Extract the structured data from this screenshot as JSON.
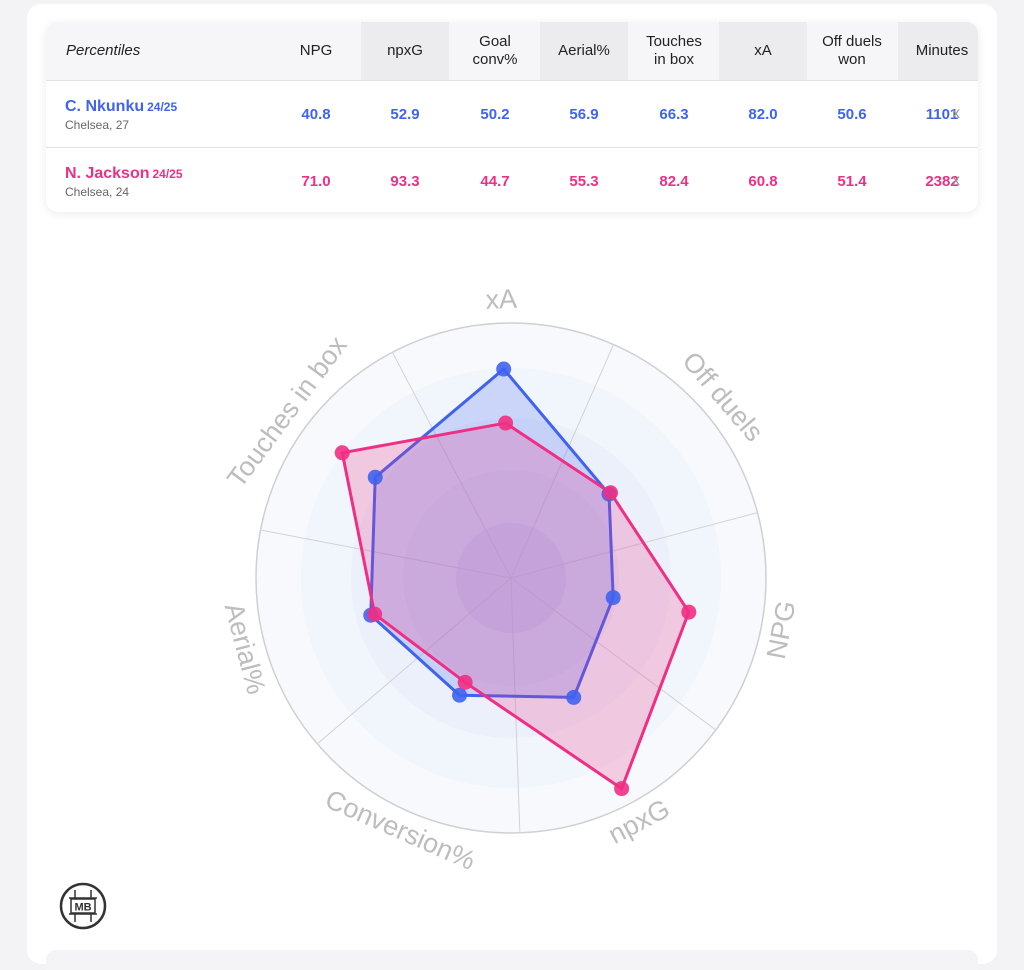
{
  "table": {
    "title": "Percentiles",
    "headers": [
      {
        "lines": [
          "NPG"
        ]
      },
      {
        "lines": [
          "npxG"
        ]
      },
      {
        "lines": [
          "Goal",
          "conv%"
        ]
      },
      {
        "lines": [
          "Aerial%"
        ]
      },
      {
        "lines": [
          "Touches",
          "in box"
        ]
      },
      {
        "lines": [
          "xA"
        ]
      },
      {
        "lines": [
          "Off duels",
          "won"
        ]
      },
      {
        "lines": [
          "Minutes"
        ]
      }
    ],
    "remove_label": "x",
    "players": [
      {
        "name": "C. Nkunku",
        "season": "24/25",
        "meta": "Chelsea, 27",
        "color": "#3f63f0",
        "values": [
          "40.8",
          "52.9",
          "50.2",
          "56.9",
          "66.3",
          "82.0",
          "50.6",
          "1101"
        ]
      },
      {
        "name": "N. Jackson",
        "season": "24/25",
        "meta": "Chelsea, 24",
        "color": "#ef2f83",
        "values": [
          "71.0",
          "93.3",
          "44.7",
          "55.3",
          "82.4",
          "60.8",
          "51.4",
          "2382"
        ]
      }
    ]
  },
  "chart_data": {
    "type": "radar",
    "axes": [
      "xA",
      "Off duels",
      "NPG",
      "npxG",
      "Conversion%",
      "Aerial%",
      "Touches in box"
    ],
    "range": [
      0,
      100
    ],
    "grid": true,
    "series": [
      {
        "name": "C. Nkunku",
        "color": "#3f63f0",
        "fill": "rgba(63,99,240,0.22)",
        "values": [
          82.0,
          50.6,
          40.8,
          52.9,
          50.2,
          56.9,
          66.3
        ]
      },
      {
        "name": "N. Jackson",
        "color": "#ef2f83",
        "fill": "rgba(239,47,131,0.22)",
        "values": [
          60.8,
          51.4,
          71.0,
          93.3,
          44.7,
          55.3,
          82.4
        ]
      }
    ]
  },
  "logo": {
    "text": "MB",
    "icon": "mb-logo-icon"
  }
}
